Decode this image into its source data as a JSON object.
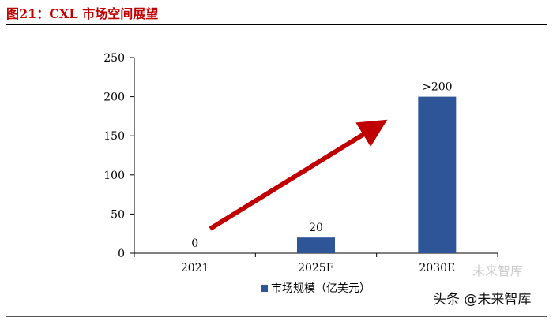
{
  "figure": {
    "title": "图21：CXL 市场空间展望"
  },
  "watermark": {
    "text": "头条 @未来智库",
    "faint_text": "未来智库"
  },
  "chart_data": {
    "type": "bar",
    "categories": [
      "2021",
      "2025E",
      "2030E"
    ],
    "series": [
      {
        "name": "市场规模（亿美元）",
        "values": [
          0,
          20,
          200
        ],
        "color": "#2e5597"
      }
    ],
    "data_labels": [
      "0",
      "20",
      ">200"
    ],
    "yticks": [
      0,
      50,
      100,
      150,
      200,
      250
    ],
    "ylim": [
      0,
      250
    ],
    "legend_position": "bottom-center",
    "arrow_color": "#c00000",
    "grid": false
  }
}
